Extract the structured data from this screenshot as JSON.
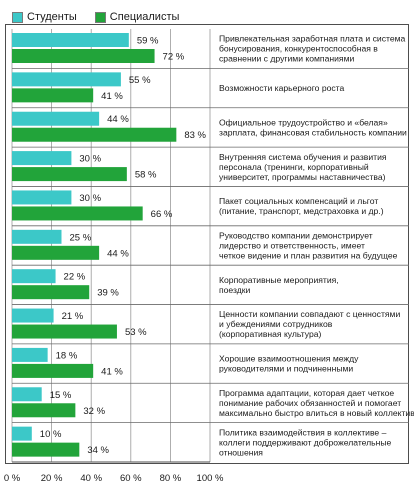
{
  "chart_data": {
    "type": "bar",
    "orientation": "horizontal",
    "xlim": [
      0,
      100
    ],
    "xticks": [
      "0 %",
      "20 %",
      "40 %",
      "60 %",
      "80 %",
      "100 %"
    ],
    "value_suffix": " %",
    "grid": true,
    "legend_position": "top-left",
    "series": [
      {
        "name": "Студенты",
        "color": "#3cc8c8",
        "values": [
          59,
          55,
          44,
          30,
          30,
          25,
          22,
          21,
          18,
          15,
          10
        ]
      },
      {
        "name": "Специалисты",
        "color": "#22a43a",
        "values": [
          72,
          41,
          83,
          58,
          66,
          44,
          39,
          53,
          41,
          32,
          34
        ]
      }
    ],
    "categories": [
      [
        "Привлекательная заработная плата и система",
        "бонусирования, конкурентоспособная в",
        "сравнении с другими компаниями"
      ],
      [
        "Возможности карьерного роста"
      ],
      [
        "Официальное трудоустройство и «белая»",
        "зарплата, финансовая стабильность компании"
      ],
      [
        "Внутренняя система обучения и развития",
        "персонала (тренинги, корпоративный",
        "университет, программы наставничества)"
      ],
      [
        "Пакет социальных компенсаций и льгот",
        "(питание, транспорт, медстраховка и др.)"
      ],
      [
        "Руководство компании демонстрирует",
        "лидерство и ответственность, имеет",
        "четкое видение и план развития на будущее"
      ],
      [
        "Корпоративные мероприятия,",
        "поездки"
      ],
      [
        "Ценности компании совпадают с ценностями",
        "и убеждениями сотрудников",
        "(корпоративная культура)"
      ],
      [
        "Хорошие взаимоотношения между",
        "руководителями и подчиненными"
      ],
      [
        "Программа адаптации, которая дает четкое",
        "понимание рабочих обязанностей и помогает",
        "максимально быстро влиться в новый коллектив"
      ],
      [
        "Политика взаимодействия в коллективе –",
        "коллеги поддерживают доброжелательные",
        "отношения"
      ]
    ]
  }
}
